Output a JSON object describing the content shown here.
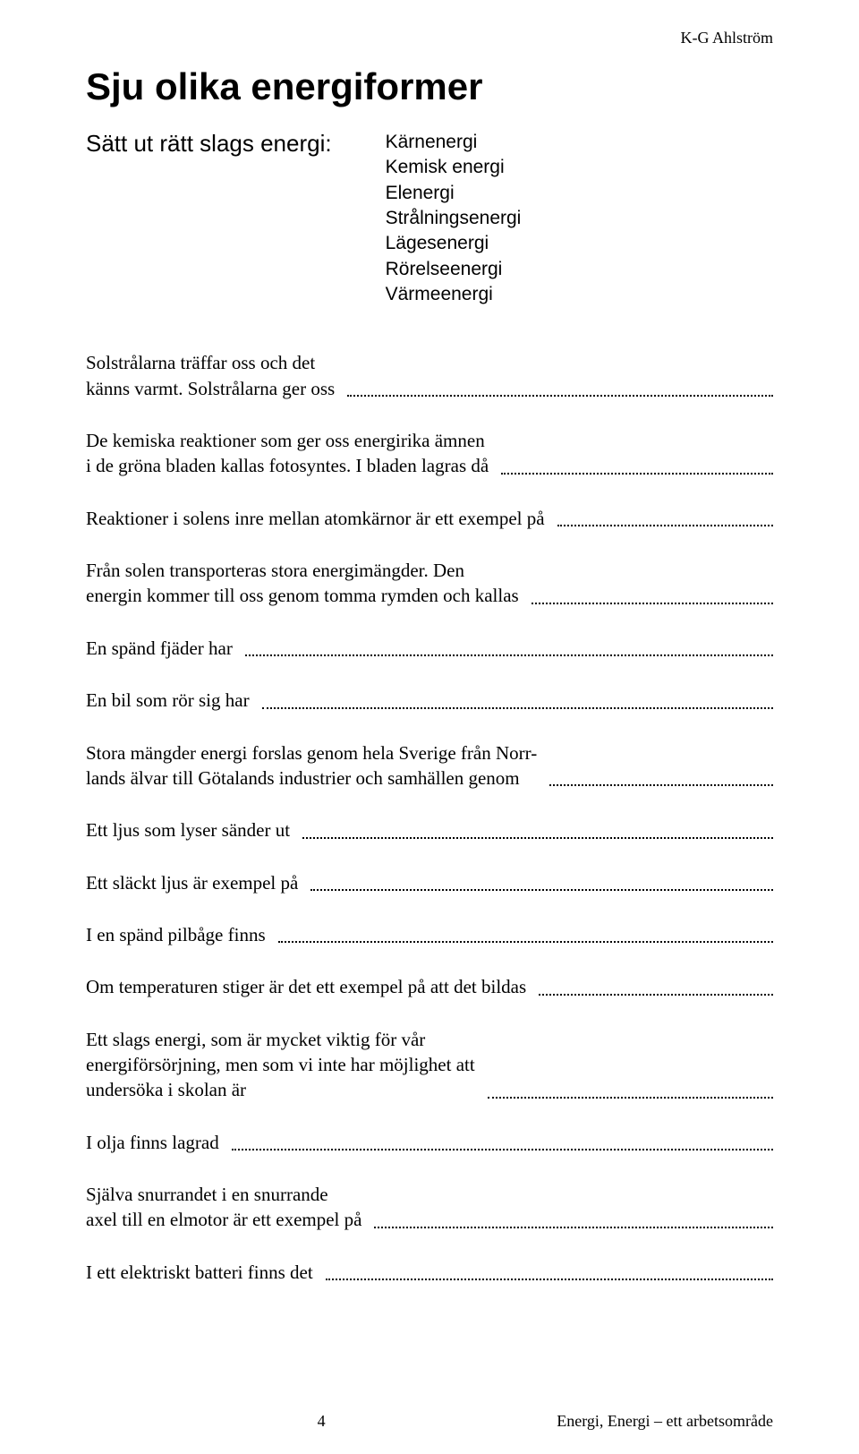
{
  "header": {
    "author": "K-G Ahlström"
  },
  "title": "Sju olika energiformer",
  "subtitle": "Sätt ut rätt slags energi:",
  "energy_types": [
    "Kärnenergi",
    "Kemisk energi",
    "Elenergi",
    "Strålningsenergi",
    "Lägesenergi",
    "Rörelseenergi",
    "Värmeenergi"
  ],
  "questions": [
    "Solstrålarna träffar oss och det\nkänns varmt. Solstrålarna ger oss",
    "De kemiska reaktioner som ger oss energirika ämnen\ni de gröna bladen kallas fotosyntes. I bladen lagras då",
    "Reaktioner i solens inre mellan atomkärnor är ett exempel på",
    "Från solen transporteras stora energimängder. Den\nenergin kommer till oss genom tomma rymden och kallas",
    "En spänd fjäder har",
    "En bil som rör sig har",
    "Stora mängder energi forslas genom hela Sverige från Norr-\nlands älvar till Götalands industrier och samhällen genom",
    "Ett ljus som lyser sänder ut",
    "Ett släckt ljus är exempel på",
    "I en spänd pilbåge finns",
    "Om temperaturen stiger är det ett exempel på att det bildas",
    "Ett slags energi, som är mycket viktig för vår\nenergiförsörjning, men som vi inte har möjlighet att\nundersöka i skolan är",
    "I olja finns lagrad",
    "Själva snurrandet i en snurrande\naxel till en elmotor är ett exempel på",
    "I ett elektriskt batteri finns det"
  ],
  "footer": {
    "page_number": "4",
    "right": "Energi, Energi – ett arbetsområde"
  }
}
